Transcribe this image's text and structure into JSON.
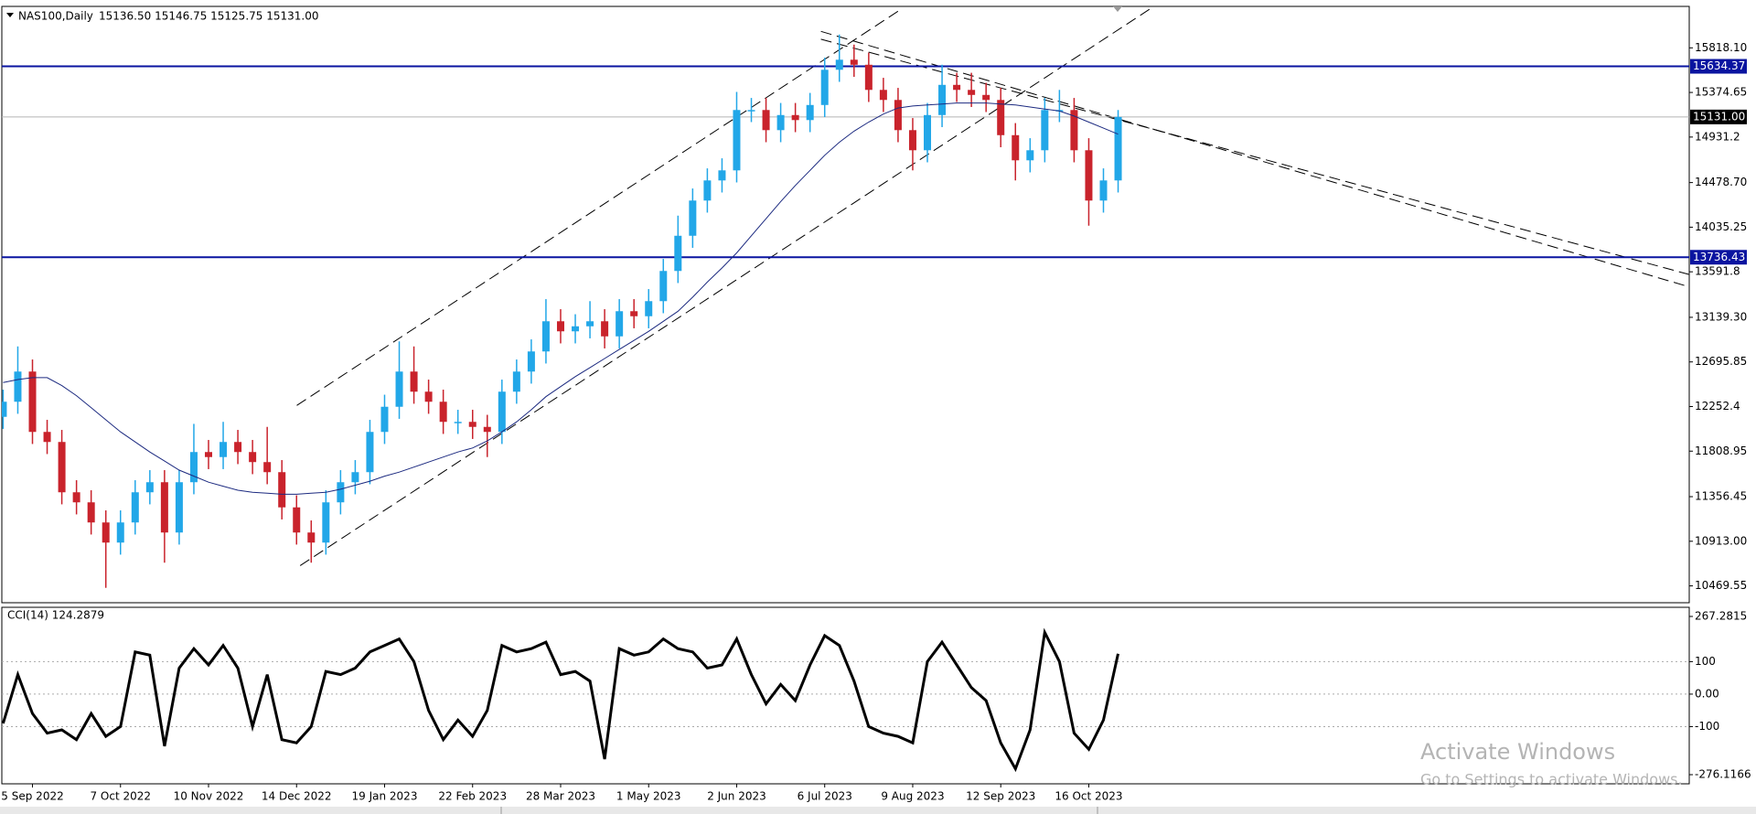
{
  "chart_data": [
    {
      "type": "candlestick",
      "title": "NAS100,Daily",
      "ohlc_text": "15136.50 15146.75 15125.75 15131.00",
      "categories": [
        null,
        null,
        "5 Sep 2022",
        null,
        null,
        null,
        null,
        null,
        "7 Oct 2022",
        null,
        null,
        null,
        null,
        null,
        "10 Nov 2022",
        null,
        null,
        null,
        null,
        null,
        "14 Dec 2022",
        null,
        null,
        null,
        null,
        null,
        "19 Jan 2023",
        null,
        null,
        null,
        null,
        null,
        "22 Feb 2023",
        null,
        null,
        null,
        null,
        null,
        "28 Mar 2023",
        null,
        null,
        null,
        null,
        null,
        "1 May 2023",
        null,
        null,
        null,
        null,
        null,
        "2 Jun 2023",
        null,
        null,
        null,
        null,
        null,
        "6 Jul 2023",
        null,
        null,
        null,
        null,
        null,
        "9 Aug 2023",
        null,
        null,
        null,
        null,
        null,
        "12 Sep 2023",
        null,
        null,
        null,
        null,
        null,
        "16 Oct 2023",
        null,
        null
      ],
      "open": [
        12150,
        12300,
        12600,
        12000,
        11900,
        11400,
        11300,
        11100,
        10900,
        11100,
        11400,
        11500,
        11000,
        11500,
        11800,
        11750,
        11900,
        11800,
        11700,
        11600,
        11250,
        11000,
        10900,
        11300,
        11500,
        11600,
        12000,
        12250,
        12600,
        12400,
        12300,
        12100,
        12100,
        12050,
        12000,
        12400,
        12600,
        12800,
        13100,
        13000,
        13050,
        13100,
        12950,
        13200,
        13150,
        13300,
        13600,
        13950,
        14300,
        14500,
        14600,
        15200,
        15200,
        15000,
        15150,
        15100,
        15250,
        15600,
        15700,
        15650,
        15400,
        15300,
        15000,
        14800,
        15150,
        15450,
        15400,
        15350,
        15300,
        14950,
        14700,
        14800,
        15200,
        15200,
        14800,
        14300,
        14500
      ],
      "high": [
        12420,
        12850,
        12720,
        12120,
        12020,
        11520,
        11420,
        11220,
        11220,
        11520,
        11620,
        11620,
        11620,
        12080,
        11920,
        12100,
        12020,
        11920,
        12050,
        11720,
        11370,
        11120,
        11420,
        11620,
        11720,
        12120,
        12370,
        12900,
        12850,
        12520,
        12420,
        12220,
        12220,
        12170,
        12520,
        12720,
        12920,
        13320,
        13220,
        13170,
        13300,
        13220,
        13320,
        13320,
        13420,
        13720,
        14150,
        14420,
        14620,
        14720,
        15380,
        15320,
        15320,
        15270,
        15270,
        15370,
        15720,
        15950,
        15850,
        15770,
        15520,
        15420,
        15120,
        15270,
        15650,
        15570,
        15570,
        15470,
        15420,
        15070,
        14920,
        15320,
        15400,
        15320,
        14920,
        14620,
        15200
      ],
      "low": [
        12030,
        12180,
        11880,
        11780,
        11280,
        11180,
        10980,
        10450,
        10780,
        10980,
        11280,
        10700,
        10880,
        11380,
        11630,
        11630,
        11680,
        11580,
        11480,
        11130,
        10880,
        10700,
        10780,
        11180,
        11380,
        11480,
        11880,
        12130,
        12280,
        12180,
        11980,
        11980,
        11930,
        11750,
        11880,
        12280,
        12480,
        12680,
        12880,
        12880,
        12930,
        12830,
        12830,
        13030,
        13030,
        13180,
        13480,
        13830,
        14180,
        14380,
        14480,
        15080,
        14880,
        14880,
        14980,
        14980,
        15130,
        15480,
        15530,
        15280,
        15180,
        14880,
        14600,
        14680,
        15030,
        15280,
        15230,
        15180,
        14830,
        14500,
        14580,
        14680,
        15080,
        14680,
        14050,
        14180,
        14380
      ],
      "close": [
        12300,
        12600,
        12000,
        11900,
        11400,
        11300,
        11100,
        10900,
        11100,
        11400,
        11500,
        11000,
        11500,
        11800,
        11750,
        11900,
        11800,
        11700,
        11600,
        11250,
        11000,
        10900,
        11300,
        11500,
        11600,
        12000,
        12250,
        12600,
        12400,
        12300,
        12100,
        12100,
        12050,
        12000,
        12400,
        12600,
        12800,
        13100,
        13000,
        13050,
        13100,
        12950,
        13200,
        13150,
        13300,
        13600,
        13950,
        14300,
        14500,
        14600,
        15200,
        15200,
        15000,
        15150,
        15100,
        15250,
        15600,
        15700,
        15650,
        15400,
        15300,
        15000,
        14800,
        15150,
        15450,
        15400,
        15350,
        15300,
        14950,
        14700,
        14800,
        15200,
        15200,
        14800,
        14300,
        14500,
        15131
      ],
      "up_color": "#22a7e8",
      "down_color": "#c9232c",
      "ma": {
        "color": "#1c2a80",
        "values": [
          12490,
          12520,
          12540,
          12540,
          12460,
          12360,
          12240,
          12120,
          12000,
          11900,
          11800,
          11710,
          11620,
          11560,
          11500,
          11460,
          11420,
          11400,
          11390,
          11380,
          11380,
          11390,
          11400,
          11430,
          11470,
          11510,
          11560,
          11600,
          11650,
          11700,
          11750,
          11800,
          11840,
          11910,
          12000,
          12100,
          12220,
          12350,
          12450,
          12550,
          12640,
          12730,
          12820,
          12910,
          13000,
          13100,
          13200,
          13340,
          13490,
          13630,
          13780,
          13950,
          14120,
          14290,
          14450,
          14600,
          14750,
          14880,
          14990,
          15080,
          15160,
          15220,
          15240,
          15250,
          15260,
          15270,
          15270,
          15270,
          15260,
          15250,
          15230,
          15210,
          15190,
          15140,
          15080,
          15020,
          14960
        ]
      },
      "levels": [
        {
          "value": 15634.37,
          "color": "#0a14a0"
        },
        {
          "value": 13736.43,
          "color": "#0a14a0"
        }
      ],
      "current_price": {
        "value": 15131,
        "label": "15131.00"
      },
      "ylim": [
        10302,
        16230
      ],
      "yticks": [
        {
          "value": 15818.1,
          "label": "15818.10"
        },
        15374.65,
        14931.2,
        {
          "value": 14478.7,
          "label": "14478.70"
        },
        14035.25,
        13591.8,
        {
          "value": 13139.3,
          "label": "13139.30"
        },
        12695.85,
        12252.4,
        11808.95,
        11356.45,
        {
          "value": 10913,
          "label": "10913.00"
        },
        10469.55
      ]
    },
    {
      "type": "line",
      "title": "CCI(14) 124.2879",
      "color": "#000000",
      "values": [
        -90,
        60,
        -60,
        -120,
        -110,
        -140,
        -60,
        -130,
        -100,
        130,
        120,
        -160,
        80,
        140,
        90,
        150,
        80,
        -100,
        60,
        -140,
        -150,
        -100,
        70,
        60,
        80,
        130,
        150,
        170,
        100,
        -50,
        -140,
        -80,
        -130,
        -50,
        150,
        130,
        140,
        160,
        60,
        70,
        40,
        -200,
        140,
        120,
        130,
        170,
        140,
        130,
        80,
        90,
        170,
        60,
        -30,
        30,
        -20,
        90,
        180,
        150,
        40,
        -100,
        -120,
        -130,
        -150,
        100,
        160,
        90,
        20,
        -20,
        -150,
        -230,
        -110,
        190,
        100,
        -120,
        -170,
        -80,
        124.2879
      ],
      "ylim": [
        -276.1166,
        267.2815
      ],
      "yticks": [
        267.2815,
        100,
        {
          "value": 0,
          "label": "0.00"
        },
        -100,
        -276.1166
      ]
    }
  ],
  "watermark": {
    "title": "Activate Windows",
    "subtitle": "Go to Settings to activate Windows."
  }
}
